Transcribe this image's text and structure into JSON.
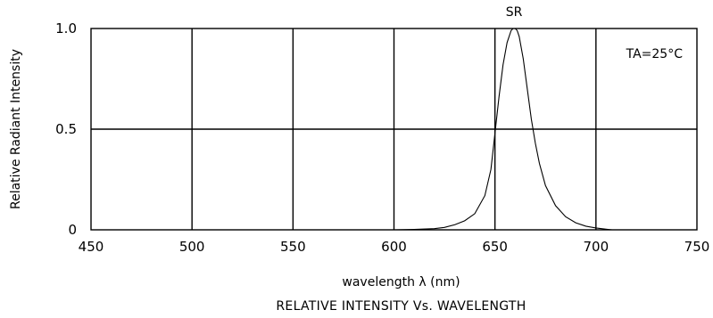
{
  "chart_data": {
    "type": "line",
    "title": "RELATIVE INTENSITY Vs. WAVELENGTH",
    "xlabel": "wavelength λ (nm)",
    "ylabel": "Relative Radiant Intensity",
    "xlim": [
      450,
      750
    ],
    "ylim": [
      0,
      1.0
    ],
    "x_ticks": [
      "450",
      "500",
      "550",
      "600",
      "650",
      "700",
      "750"
    ],
    "y_ticks": [
      "0",
      "0.5",
      "1.0"
    ],
    "grid": true,
    "annotation": "TA=25°C",
    "series": [
      {
        "name": "SR",
        "x": [
          600,
          610,
          620,
          625,
          630,
          635,
          640,
          645,
          648,
          650,
          652,
          654,
          656,
          658,
          659,
          660,
          661,
          662,
          664,
          666,
          668,
          670,
          672,
          675,
          680,
          685,
          690,
          695,
          700,
          705,
          708
        ],
        "y": [
          0.0,
          0.002,
          0.006,
          0.012,
          0.025,
          0.045,
          0.08,
          0.17,
          0.3,
          0.48,
          0.66,
          0.82,
          0.93,
          0.99,
          1.0,
          1.0,
          0.99,
          0.96,
          0.85,
          0.7,
          0.55,
          0.43,
          0.33,
          0.22,
          0.12,
          0.065,
          0.035,
          0.018,
          0.009,
          0.003,
          0.0
        ]
      }
    ]
  }
}
